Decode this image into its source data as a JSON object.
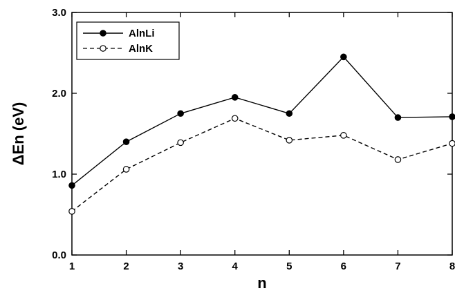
{
  "chart_data": {
    "type": "line",
    "x": [
      1,
      2,
      3,
      4,
      5,
      6,
      7,
      8
    ],
    "xlim": [
      1,
      8
    ],
    "ylim": [
      0,
      3
    ],
    "xticks": [
      "1",
      "2",
      "3",
      "4",
      "5",
      "6",
      "7",
      "8"
    ],
    "yticks": [
      "0.0",
      "1.0",
      "2.0",
      "3.0"
    ],
    "xlabel": "n",
    "ylabel": "ΔEn (eV)",
    "grid": false,
    "legend_position": "top-left",
    "series": [
      {
        "name": "AlnLi",
        "values": [
          0.86,
          1.4,
          1.75,
          1.95,
          1.75,
          2.45,
          1.7,
          1.71
        ],
        "style": "solid",
        "marker": "filled-circle",
        "color": "#000000"
      },
      {
        "name": "AlnK",
        "values": [
          0.54,
          1.06,
          1.39,
          1.69,
          1.42,
          1.48,
          1.18,
          1.38
        ],
        "style": "dashed",
        "marker": "open-circle",
        "color": "#000000"
      }
    ]
  }
}
